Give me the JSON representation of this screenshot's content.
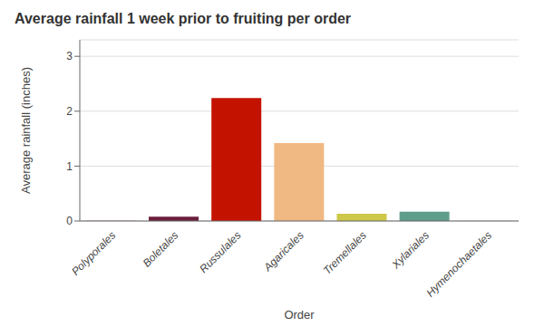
{
  "chart_data": {
    "type": "bar",
    "title": "Average rainfall 1 week prior to fruiting per order",
    "xlabel": "Order",
    "ylabel": "Average rainfall (inches)",
    "categories": [
      "Polyporales",
      "Boletales",
      "Russulales",
      "Agaricales",
      "Tremellales",
      "Xylariales",
      "Hymenochaetales"
    ],
    "values": [
      0.01,
      0.08,
      2.24,
      1.42,
      0.13,
      0.17,
      0.005
    ],
    "colors": [
      "#c8a0c8",
      "#6b1e3c",
      "#c41200",
      "#f0b882",
      "#cec849",
      "#5e9e8a",
      "#c8c8b0"
    ],
    "ylim": [
      0,
      3.3
    ],
    "yticks": [
      0,
      1,
      2,
      3
    ],
    "grid": true
  }
}
